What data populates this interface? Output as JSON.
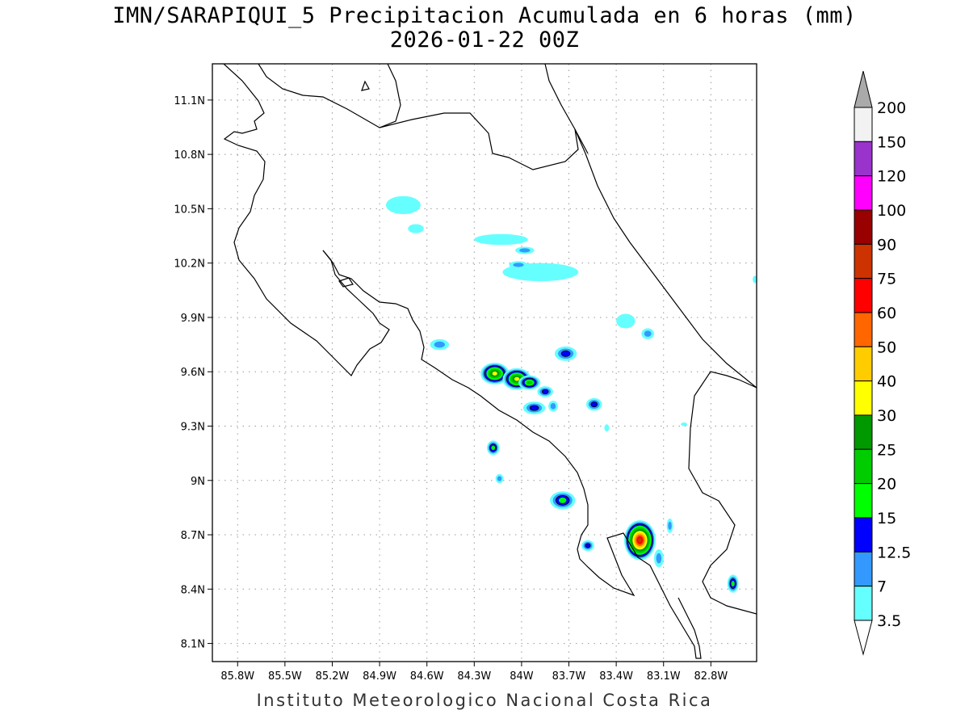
{
  "title_line1": "IMN/SARAPIQUI_5 Precipitacion Acumulada en 6 horas (mm)",
  "title_line2": "2026-01-22 00Z",
  "credit": "Instituto Meteorologico Nacional Costa Rica",
  "map": {
    "lon_range": [
      -85.96,
      -82.51
    ],
    "lat_range": [
      8.0,
      11.3
    ],
    "lon_ticks": [
      -85.8,
      -85.5,
      -85.2,
      -84.9,
      -84.6,
      -84.3,
      -84.0,
      -83.7,
      -83.4,
      -83.1,
      -82.8
    ],
    "lon_tick_labels": [
      "85.8W",
      "85.5W",
      "85.2W",
      "84.9W",
      "84.6W",
      "84.3W",
      "84W",
      "83.7W",
      "83.4W",
      "83.1W",
      "82.8W"
    ],
    "lat_ticks": [
      8.1,
      8.4,
      8.7,
      9.0,
      9.3,
      9.6,
      9.9,
      10.2,
      10.5,
      10.8,
      11.1
    ],
    "lat_tick_labels": [
      "8.1N",
      "8.4N",
      "8.7N",
      "9N",
      "9.3N",
      "9.6N",
      "9.9N",
      "10.2N",
      "10.5N",
      "10.8N",
      "11.1N"
    ]
  },
  "chart_data": {
    "type": "heatmap",
    "variable": "6-hour accumulated precipitation (mm)",
    "levels": [
      3.5,
      7,
      12.5,
      15,
      20,
      25,
      30,
      40,
      50,
      60,
      75,
      90,
      100,
      120,
      150,
      200
    ],
    "level_colors": [
      "#66ffff",
      "#3399ff",
      "#0000ff",
      "#00ff00",
      "#00cc00",
      "#009900",
      "#ffff00",
      "#ffcc00",
      "#ff6600",
      "#ff0000",
      "#cc3300",
      "#990000",
      "#ff00ff",
      "#9933cc",
      "#f2f2f2"
    ],
    "over_color": "#aaaaaa",
    "under_color": "#ffffff",
    "colorbar_labels": [
      "200",
      "150",
      "120",
      "100",
      "90",
      "75",
      "60",
      "50",
      "40",
      "30",
      "25",
      "20",
      "15",
      "12.5",
      "7",
      "3.5"
    ],
    "cells": [
      {
        "lon": -84.75,
        "lat": 10.52,
        "rx": 0.11,
        "ry": 0.05,
        "max": 3.5
      },
      {
        "lon": -84.67,
        "lat": 10.39,
        "rx": 0.05,
        "ry": 0.025,
        "max": 3.5
      },
      {
        "lon": -84.13,
        "lat": 10.33,
        "rx": 0.17,
        "ry": 0.03,
        "max": 3.5
      },
      {
        "lon": -83.98,
        "lat": 10.27,
        "rx": 0.06,
        "ry": 0.02,
        "max": 7
      },
      {
        "lon": -83.88,
        "lat": 10.15,
        "rx": 0.24,
        "ry": 0.05,
        "max": 3.5
      },
      {
        "lon": -84.02,
        "lat": 10.19,
        "rx": 0.06,
        "ry": 0.02,
        "max": 7
      },
      {
        "lon": -83.34,
        "lat": 9.88,
        "rx": 0.06,
        "ry": 0.04,
        "max": 3.5
      },
      {
        "lon": -83.2,
        "lat": 9.81,
        "rx": 0.04,
        "ry": 0.03,
        "max": 7
      },
      {
        "lon": -84.52,
        "lat": 9.75,
        "rx": 0.06,
        "ry": 0.03,
        "max": 7
      },
      {
        "lon": -83.72,
        "lat": 9.7,
        "rx": 0.07,
        "ry": 0.04,
        "max": 12.5
      },
      {
        "lon": -84.17,
        "lat": 9.59,
        "rx": 0.09,
        "ry": 0.06,
        "max": 30
      },
      {
        "lon": -84.03,
        "lat": 9.56,
        "rx": 0.09,
        "ry": 0.06,
        "max": 30
      },
      {
        "lon": -83.95,
        "lat": 9.54,
        "rx": 0.07,
        "ry": 0.04,
        "max": 20
      },
      {
        "lon": -83.85,
        "lat": 9.49,
        "rx": 0.05,
        "ry": 0.03,
        "max": 12.5
      },
      {
        "lon": -83.92,
        "lat": 9.4,
        "rx": 0.07,
        "ry": 0.035,
        "max": 12.5
      },
      {
        "lon": -83.8,
        "lat": 9.41,
        "rx": 0.03,
        "ry": 0.03,
        "max": 7
      },
      {
        "lon": -83.54,
        "lat": 9.42,
        "rx": 0.05,
        "ry": 0.035,
        "max": 12.5
      },
      {
        "lon": -84.18,
        "lat": 9.18,
        "rx": 0.04,
        "ry": 0.04,
        "max": 15
      },
      {
        "lon": -84.14,
        "lat": 9.01,
        "rx": 0.025,
        "ry": 0.025,
        "max": 7
      },
      {
        "lon": -83.74,
        "lat": 8.89,
        "rx": 0.08,
        "ry": 0.05,
        "max": 15
      },
      {
        "lon": -83.58,
        "lat": 8.64,
        "rx": 0.04,
        "ry": 0.03,
        "max": 12.5
      },
      {
        "lon": -83.25,
        "lat": 8.67,
        "rx": 0.1,
        "ry": 0.11,
        "max": 75
      },
      {
        "lon": -83.13,
        "lat": 8.57,
        "rx": 0.03,
        "ry": 0.05,
        "max": 7
      },
      {
        "lon": -83.06,
        "lat": 8.75,
        "rx": 0.02,
        "ry": 0.04,
        "max": 7
      },
      {
        "lon": -82.66,
        "lat": 8.43,
        "rx": 0.035,
        "ry": 0.05,
        "max": 15
      },
      {
        "lon": -82.52,
        "lat": 10.11,
        "rx": 0.015,
        "ry": 0.02,
        "max": 3.5
      },
      {
        "lon": -83.46,
        "lat": 9.29,
        "rx": 0.015,
        "ry": 0.02,
        "max": 3.5
      },
      {
        "lon": -82.97,
        "lat": 9.31,
        "rx": 0.02,
        "ry": 0.01,
        "max": 3.5
      }
    ]
  }
}
